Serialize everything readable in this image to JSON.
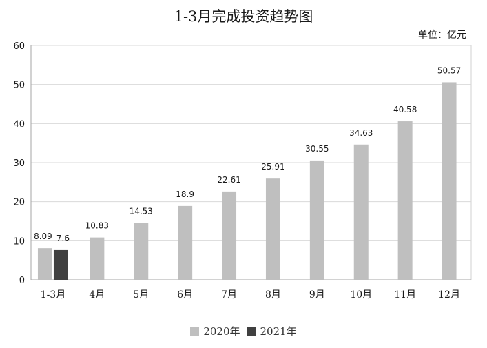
{
  "chart_data": {
    "type": "bar",
    "title": "1-3月完成投资趋势图",
    "unit": "单位：亿元",
    "categories": [
      "1-3月",
      "4月",
      "5月",
      "6月",
      "7月",
      "8月",
      "9月",
      "10月",
      "11月",
      "12月"
    ],
    "series": [
      {
        "name": "2020年",
        "color": "#bfbfbf",
        "values": [
          8.09,
          10.83,
          14.53,
          18.9,
          22.61,
          25.91,
          30.55,
          34.63,
          40.58,
          50.57
        ]
      },
      {
        "name": "2021年",
        "color": "#404040",
        "values": [
          7.6,
          null,
          null,
          null,
          null,
          null,
          null,
          null,
          null,
          null
        ]
      }
    ],
    "ylim": [
      0,
      60
    ],
    "yticks": [
      0,
      10,
      20,
      30,
      40,
      50,
      60
    ],
    "grid": true,
    "legend_position": "bottom"
  }
}
